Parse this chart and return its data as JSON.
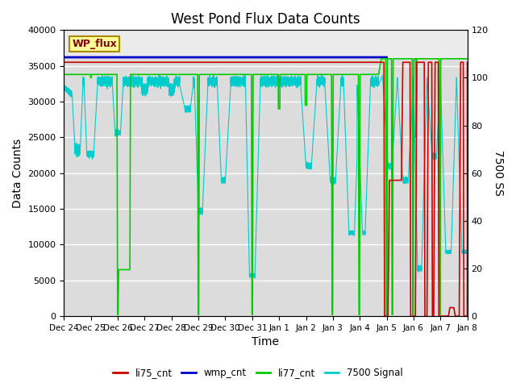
{
  "title": "West Pond Flux Data Counts",
  "xlabel": "Time",
  "ylabel_left": "Data Counts",
  "ylabel_right": "7500 SS",
  "ylim_left": [
    0,
    40000
  ],
  "ylim_right": [
    0,
    120
  ],
  "x_tick_labels": [
    "Dec 24",
    "Dec 25",
    "Dec 26",
    "Dec 27",
    "Dec 28",
    "Dec 29",
    "Dec 30",
    "Dec 31",
    "Jan 1",
    "Jan 2",
    "Jan 3",
    "Jan 4",
    "Jan 5",
    "Jan 6",
    "Jan 7",
    "Jan 8"
  ],
  "background_color": "#dcdcdc",
  "background_top_color": "#e8e8e8",
  "wmp_cnt_color": "#0000cc",
  "li75_cnt_color": "#cc0000",
  "li77_cnt_color": "#00cc00",
  "signal7500_color": "#00cccc",
  "legend_box_color": "#ffff99",
  "legend_box_text": "WP_flux",
  "legend_box_text_color": "#800000",
  "grid_color": "#ffffff",
  "yticks_left": [
    0,
    5000,
    10000,
    15000,
    20000,
    25000,
    30000,
    35000,
    40000
  ],
  "yticks_right": [
    0,
    20,
    40,
    60,
    80,
    100,
    120
  ]
}
